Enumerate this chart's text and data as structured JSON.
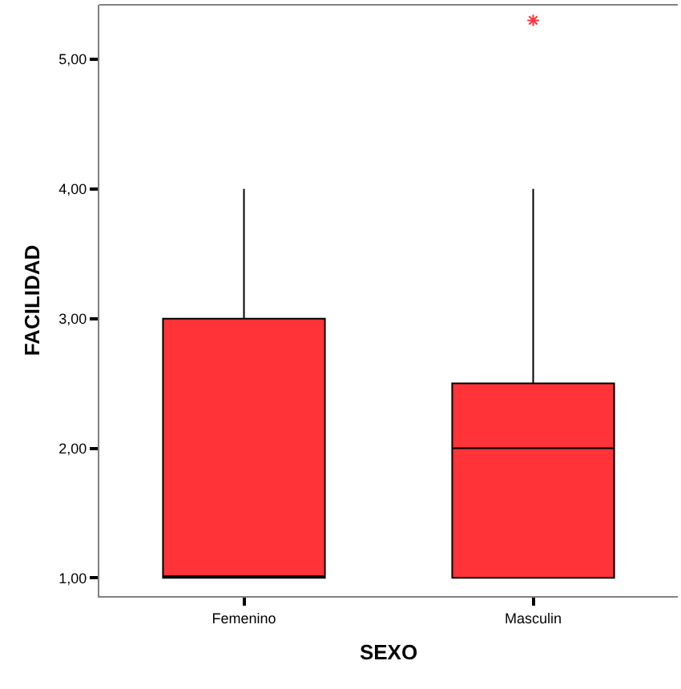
{
  "chart_data": {
    "type": "box",
    "xlabel": "SEXO",
    "ylabel": "FACILIDAD",
    "categories": [
      "Femenino",
      "Masculin"
    ],
    "color": "#ff3338",
    "boxes": [
      {
        "low": 1,
        "q1": 1,
        "median": 1,
        "q3": 3,
        "high": 4
      },
      {
        "low": 1,
        "q1": 1,
        "median": 2,
        "q3": 2.5,
        "high": 4,
        "outliers": [
          5.3
        ]
      }
    ],
    "ylim": [
      0.86,
      5.42
    ],
    "yticks": [
      {
        "value": 1,
        "label": "1,00"
      },
      {
        "value": 2,
        "label": "2,00"
      },
      {
        "value": 3,
        "label": "3,00"
      },
      {
        "value": 4,
        "label": "4,00"
      },
      {
        "value": 5,
        "label": "5,00"
      }
    ]
  }
}
